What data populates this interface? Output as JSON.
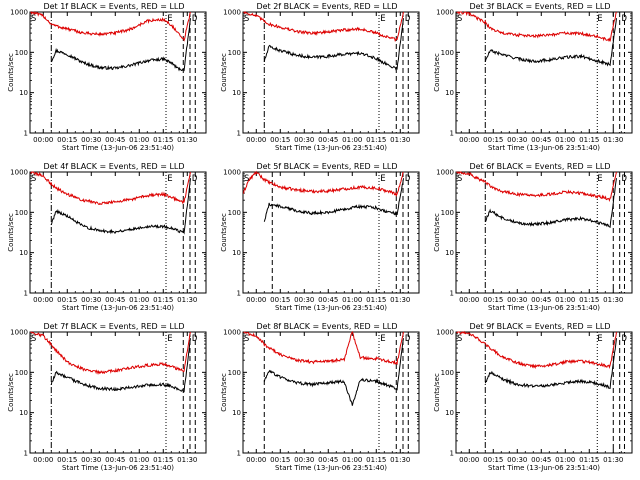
{
  "colors": {
    "events": "#000000",
    "lld": "#dd0000",
    "axes": "#000000"
  },
  "common": {
    "xlabel": "Start Time (13-Jun-06 23:51:40)",
    "ylabel": "Counts/sec",
    "xticks": [
      "00:00",
      "00:15",
      "00:30",
      "00:45",
      "01:00",
      "01:15",
      "01:30"
    ],
    "yticks": [
      "1",
      "10",
      "100",
      "1000"
    ],
    "markers": {
      "start": "S",
      "end": "E",
      "stop": "D"
    }
  },
  "chart_data": [
    {
      "type": "line",
      "title": "Det 1f BLACK = Events, RED = LLD",
      "yscale": "log",
      "ylim": [
        1,
        1000
      ],
      "xlim_minutes": [
        -8.3,
        101.7
      ],
      "series": [
        {
          "name": "Events",
          "x": [
            5,
            8,
            15,
            25,
            35,
            45,
            55,
            65,
            75,
            80,
            84,
            88,
            92
          ],
          "y": [
            60,
            110,
            90,
            55,
            42,
            40,
            48,
            62,
            68,
            55,
            40,
            36,
            700
          ]
        },
        {
          "name": "LLD",
          "x": [
            -8,
            0,
            5,
            8,
            15,
            25,
            35,
            45,
            55,
            65,
            75,
            80,
            84,
            88,
            92
          ],
          "y": [
            1000,
            800,
            500,
            450,
            380,
            300,
            280,
            300,
            380,
            600,
            650,
            480,
            300,
            200,
            1000
          ]
        }
      ],
      "vlines": [
        {
          "x": 5,
          "style": "dashdot"
        },
        {
          "x": 76.7,
          "style": "dotted"
        },
        {
          "x": 87.5,
          "style": "dashed"
        },
        {
          "x": 91.7,
          "style": "dashed"
        },
        {
          "x": 95,
          "style": "dashed"
        }
      ]
    },
    {
      "type": "line",
      "title": "Det 2f BLACK = Events, RED = LLD",
      "yscale": "log",
      "ylim": [
        1,
        1000
      ],
      "xlim_minutes": [
        -8.3,
        101.7
      ],
      "series": [
        {
          "name": "Events",
          "x": [
            5,
            8,
            15,
            25,
            35,
            45,
            55,
            65,
            75,
            80,
            84,
            88,
            92
          ],
          "y": [
            60,
            140,
            110,
            85,
            75,
            80,
            90,
            95,
            70,
            55,
            45,
            40,
            700
          ]
        },
        {
          "name": "LLD",
          "x": [
            -8,
            0,
            5,
            8,
            15,
            25,
            35,
            45,
            55,
            65,
            75,
            80,
            84,
            88,
            92
          ],
          "y": [
            1000,
            800,
            600,
            500,
            420,
            330,
            300,
            320,
            360,
            380,
            300,
            250,
            230,
            200,
            1000
          ]
        }
      ],
      "vlines": [
        {
          "x": 5,
          "style": "dashdot"
        },
        {
          "x": 76.7,
          "style": "dotted"
        },
        {
          "x": 87.5,
          "style": "dashed"
        },
        {
          "x": 91.7,
          "style": "dashed"
        },
        {
          "x": 95,
          "style": "dashed"
        }
      ]
    },
    {
      "type": "line",
      "title": "Det 3f BLACK = Events, RED = LLD",
      "yscale": "log",
      "ylim": [
        1,
        1000
      ],
      "xlim_minutes": [
        -8.3,
        101.7
      ],
      "series": [
        {
          "name": "Events",
          "x": [
            10,
            13,
            20,
            30,
            40,
            50,
            60,
            70,
            78,
            84,
            88,
            92
          ],
          "y": [
            60,
            110,
            90,
            70,
            60,
            65,
            75,
            80,
            65,
            55,
            50,
            700
          ]
        },
        {
          "name": "LLD",
          "x": [
            -8,
            0,
            5,
            10,
            13,
            20,
            30,
            40,
            50,
            60,
            70,
            78,
            84,
            88,
            92
          ],
          "y": [
            1000,
            900,
            700,
            550,
            400,
            300,
            270,
            250,
            270,
            300,
            290,
            260,
            220,
            200,
            1000
          ]
        }
      ],
      "vlines": [
        {
          "x": 10,
          "style": "dashdot"
        },
        {
          "x": 80,
          "style": "dotted"
        },
        {
          "x": 90,
          "style": "dashed"
        },
        {
          "x": 94,
          "style": "dashed"
        },
        {
          "x": 97,
          "style": "dashed"
        }
      ]
    },
    {
      "type": "line",
      "title": "Det 4f BLACK = Events, RED = LLD",
      "yscale": "log",
      "ylim": [
        1,
        1000
      ],
      "xlim_minutes": [
        -8.3,
        101.7
      ],
      "series": [
        {
          "name": "Events",
          "x": [
            5,
            8,
            15,
            25,
            35,
            45,
            55,
            65,
            75,
            80,
            84,
            88,
            92
          ],
          "y": [
            50,
            110,
            80,
            45,
            35,
            33,
            38,
            45,
            45,
            40,
            35,
            32,
            700
          ]
        },
        {
          "name": "LLD",
          "x": [
            -8,
            0,
            5,
            8,
            15,
            25,
            35,
            45,
            55,
            65,
            75,
            80,
            84,
            88,
            92
          ],
          "y": [
            1000,
            800,
            500,
            400,
            280,
            200,
            170,
            180,
            210,
            260,
            280,
            240,
            200,
            180,
            1000
          ]
        }
      ],
      "vlines": [
        {
          "x": 5,
          "style": "dashdot"
        },
        {
          "x": 76.7,
          "style": "dotted"
        },
        {
          "x": 87.5,
          "style": "dashed"
        },
        {
          "x": 91.7,
          "style": "dashed"
        },
        {
          "x": 95,
          "style": "dashed"
        }
      ]
    },
    {
      "type": "line",
      "title": "Det 5f BLACK = Events, RED = LLD",
      "yscale": "log",
      "ylim": [
        1,
        1000
      ],
      "xlim_minutes": [
        -8.3,
        101.7
      ],
      "series": [
        {
          "name": "Events",
          "x": [
            5,
            8,
            15,
            25,
            35,
            45,
            55,
            65,
            75,
            80,
            84,
            88,
            92
          ],
          "y": [
            60,
            160,
            140,
            110,
            95,
            100,
            120,
            140,
            130,
            110,
            100,
            90,
            700
          ]
        },
        {
          "name": "LLD",
          "x": [
            -8,
            -5,
            0,
            4,
            8,
            15,
            25,
            35,
            45,
            55,
            65,
            75,
            80,
            84,
            88,
            92
          ],
          "y": [
            300,
            600,
            1000,
            700,
            550,
            420,
            360,
            330,
            340,
            380,
            420,
            400,
            350,
            320,
            280,
            1000
          ]
        }
      ],
      "vlines": [
        {
          "x": 10,
          "style": "dashed"
        },
        {
          "x": 76.7,
          "style": "dotted"
        },
        {
          "x": 87.5,
          "style": "dashed"
        },
        {
          "x": 91.7,
          "style": "dashed"
        },
        {
          "x": 95,
          "style": "dashed"
        }
      ]
    },
    {
      "type": "line",
      "title": "Det 6f BLACK = Events, RED = LLD",
      "yscale": "log",
      "ylim": [
        1,
        1000
      ],
      "xlim_minutes": [
        -8.3,
        101.7
      ],
      "series": [
        {
          "name": "Events",
          "x": [
            10,
            13,
            20,
            30,
            40,
            50,
            60,
            70,
            78,
            84,
            88,
            92
          ],
          "y": [
            60,
            110,
            75,
            55,
            50,
            55,
            65,
            70,
            60,
            50,
            45,
            700
          ]
        },
        {
          "name": "LLD",
          "x": [
            -8,
            0,
            5,
            10,
            13,
            20,
            30,
            40,
            50,
            60,
            70,
            78,
            84,
            88,
            92
          ],
          "y": [
            1000,
            900,
            700,
            550,
            450,
            330,
            280,
            260,
            280,
            320,
            300,
            260,
            230,
            210,
            1000
          ]
        }
      ],
      "vlines": [
        {
          "x": 10,
          "style": "dashdot"
        },
        {
          "x": 80,
          "style": "dotted"
        },
        {
          "x": 90,
          "style": "dashed"
        },
        {
          "x": 94,
          "style": "dashed"
        },
        {
          "x": 97,
          "style": "dashed"
        }
      ]
    },
    {
      "type": "line",
      "title": "Det 7f BLACK = Events, RED = LLD",
      "yscale": "log",
      "ylim": [
        1,
        1000
      ],
      "xlim_minutes": [
        -8.3,
        101.7
      ],
      "series": [
        {
          "name": "Events",
          "x": [
            5,
            8,
            15,
            25,
            35,
            45,
            55,
            65,
            75,
            80,
            84,
            88,
            92
          ],
          "y": [
            50,
            100,
            75,
            50,
            40,
            38,
            42,
            48,
            50,
            45,
            38,
            35,
            700
          ]
        },
        {
          "name": "LLD",
          "x": [
            -8,
            0,
            5,
            8,
            15,
            25,
            35,
            45,
            55,
            65,
            75,
            80,
            84,
            88,
            92
          ],
          "y": [
            1000,
            800,
            500,
            350,
            180,
            120,
            100,
            110,
            130,
            150,
            160,
            140,
            120,
            110,
            1000
          ]
        }
      ],
      "vlines": [
        {
          "x": 5,
          "style": "dashdot"
        },
        {
          "x": 76.7,
          "style": "dotted"
        },
        {
          "x": 87.5,
          "style": "dashed"
        },
        {
          "x": 91.7,
          "style": "dashed"
        },
        {
          "x": 95,
          "style": "dashed"
        }
      ]
    },
    {
      "type": "line",
      "title": "Det 8f BLACK = Events, RED = LLD",
      "yscale": "log",
      "ylim": [
        1,
        1000
      ],
      "xlim_minutes": [
        -8.3,
        101.7
      ],
      "series": [
        {
          "name": "Events",
          "x": [
            5,
            8,
            15,
            25,
            35,
            45,
            55,
            60,
            65,
            75,
            80,
            84,
            88,
            92
          ],
          "y": [
            60,
            110,
            75,
            55,
            50,
            55,
            60,
            15,
            65,
            60,
            50,
            45,
            40,
            700
          ]
        },
        {
          "name": "LLD",
          "x": [
            -8,
            0,
            5,
            8,
            15,
            25,
            35,
            45,
            55,
            60,
            65,
            75,
            80,
            84,
            88,
            92
          ],
          "y": [
            1000,
            800,
            500,
            400,
            280,
            200,
            180,
            190,
            210,
            1000,
            230,
            220,
            200,
            180,
            170,
            1000
          ]
        }
      ],
      "vlines": [
        {
          "x": 5,
          "style": "dashed"
        },
        {
          "x": 76.7,
          "style": "dotted"
        },
        {
          "x": 87.5,
          "style": "dashed"
        },
        {
          "x": 91.7,
          "style": "dashed"
        },
        {
          "x": 95,
          "style": "dashed"
        }
      ]
    },
    {
      "type": "line",
      "title": "Det 9f BLACK = Events, RED = LLD",
      "yscale": "log",
      "ylim": [
        1,
        1000
      ],
      "xlim_minutes": [
        -8.3,
        101.7
      ],
      "series": [
        {
          "name": "Events",
          "x": [
            10,
            13,
            20,
            30,
            40,
            50,
            60,
            70,
            78,
            84,
            88,
            92
          ],
          "y": [
            55,
            100,
            70,
            50,
            45,
            48,
            55,
            60,
            55,
            48,
            42,
            700
          ]
        },
        {
          "name": "LLD",
          "x": [
            -8,
            0,
            5,
            10,
            13,
            20,
            30,
            40,
            50,
            60,
            70,
            78,
            84,
            88,
            92
          ],
          "y": [
            1000,
            900,
            700,
            500,
            400,
            250,
            170,
            140,
            150,
            180,
            190,
            170,
            150,
            140,
            1000
          ]
        }
      ],
      "vlines": [
        {
          "x": 10,
          "style": "dashdot"
        },
        {
          "x": 80,
          "style": "dotted"
        },
        {
          "x": 90,
          "style": "dashed"
        },
        {
          "x": 94,
          "style": "dashed"
        },
        {
          "x": 97,
          "style": "dashed"
        }
      ]
    }
  ]
}
